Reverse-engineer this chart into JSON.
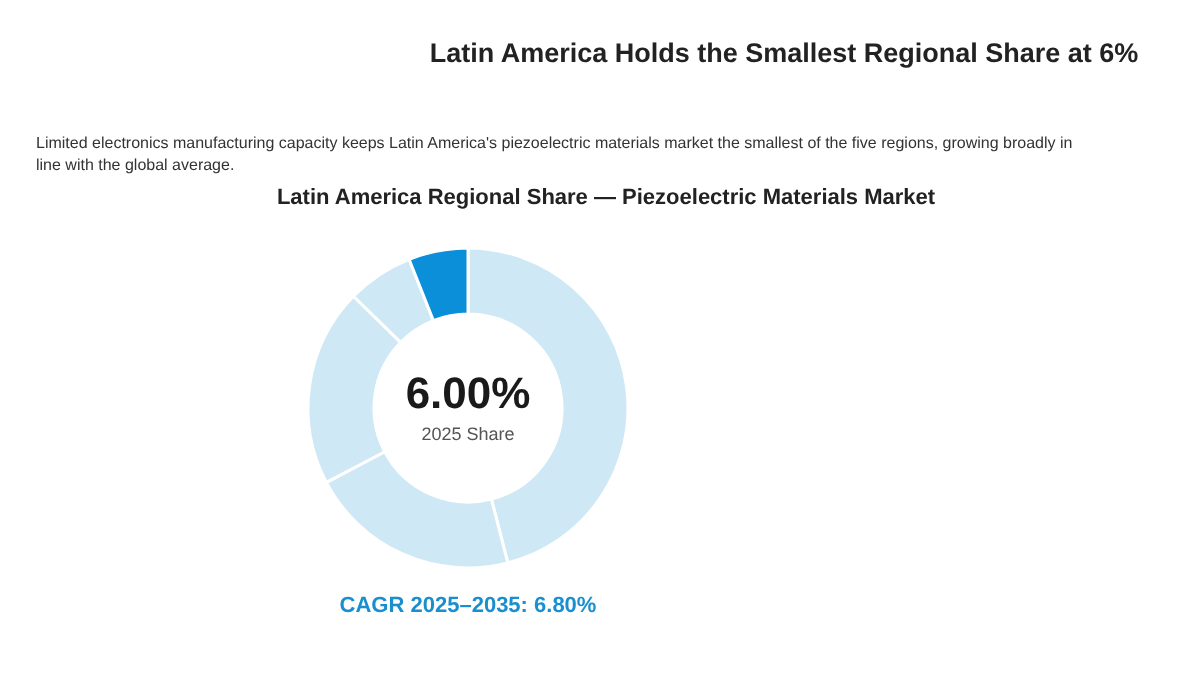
{
  "chart_data": {
    "type": "donut",
    "title": "Latin America Holds the Smallest Regional Share at 6%",
    "subtitle": "Limited electronics manufacturing capacity keeps Latin America's piezoelectric materials market the smallest of the five regions, growing broadly in line with the global average.",
    "xlabel": "Latin America Regional Share — Piezoelectric Materials Market",
    "categories": [
      null,
      null,
      null,
      null,
      null
    ],
    "values": [
      46,
      21.3,
      20,
      6.7,
      6
    ],
    "colors": [
      "#cfe8f6",
      "#cfe8f6",
      "#cfe8f6",
      "#cfe8f6",
      "#0a8fd8"
    ],
    "annotations": [
      "6.00%",
      "2025 Share",
      "CAGR 2025–2035: 6.80%"
    ]
  }
}
